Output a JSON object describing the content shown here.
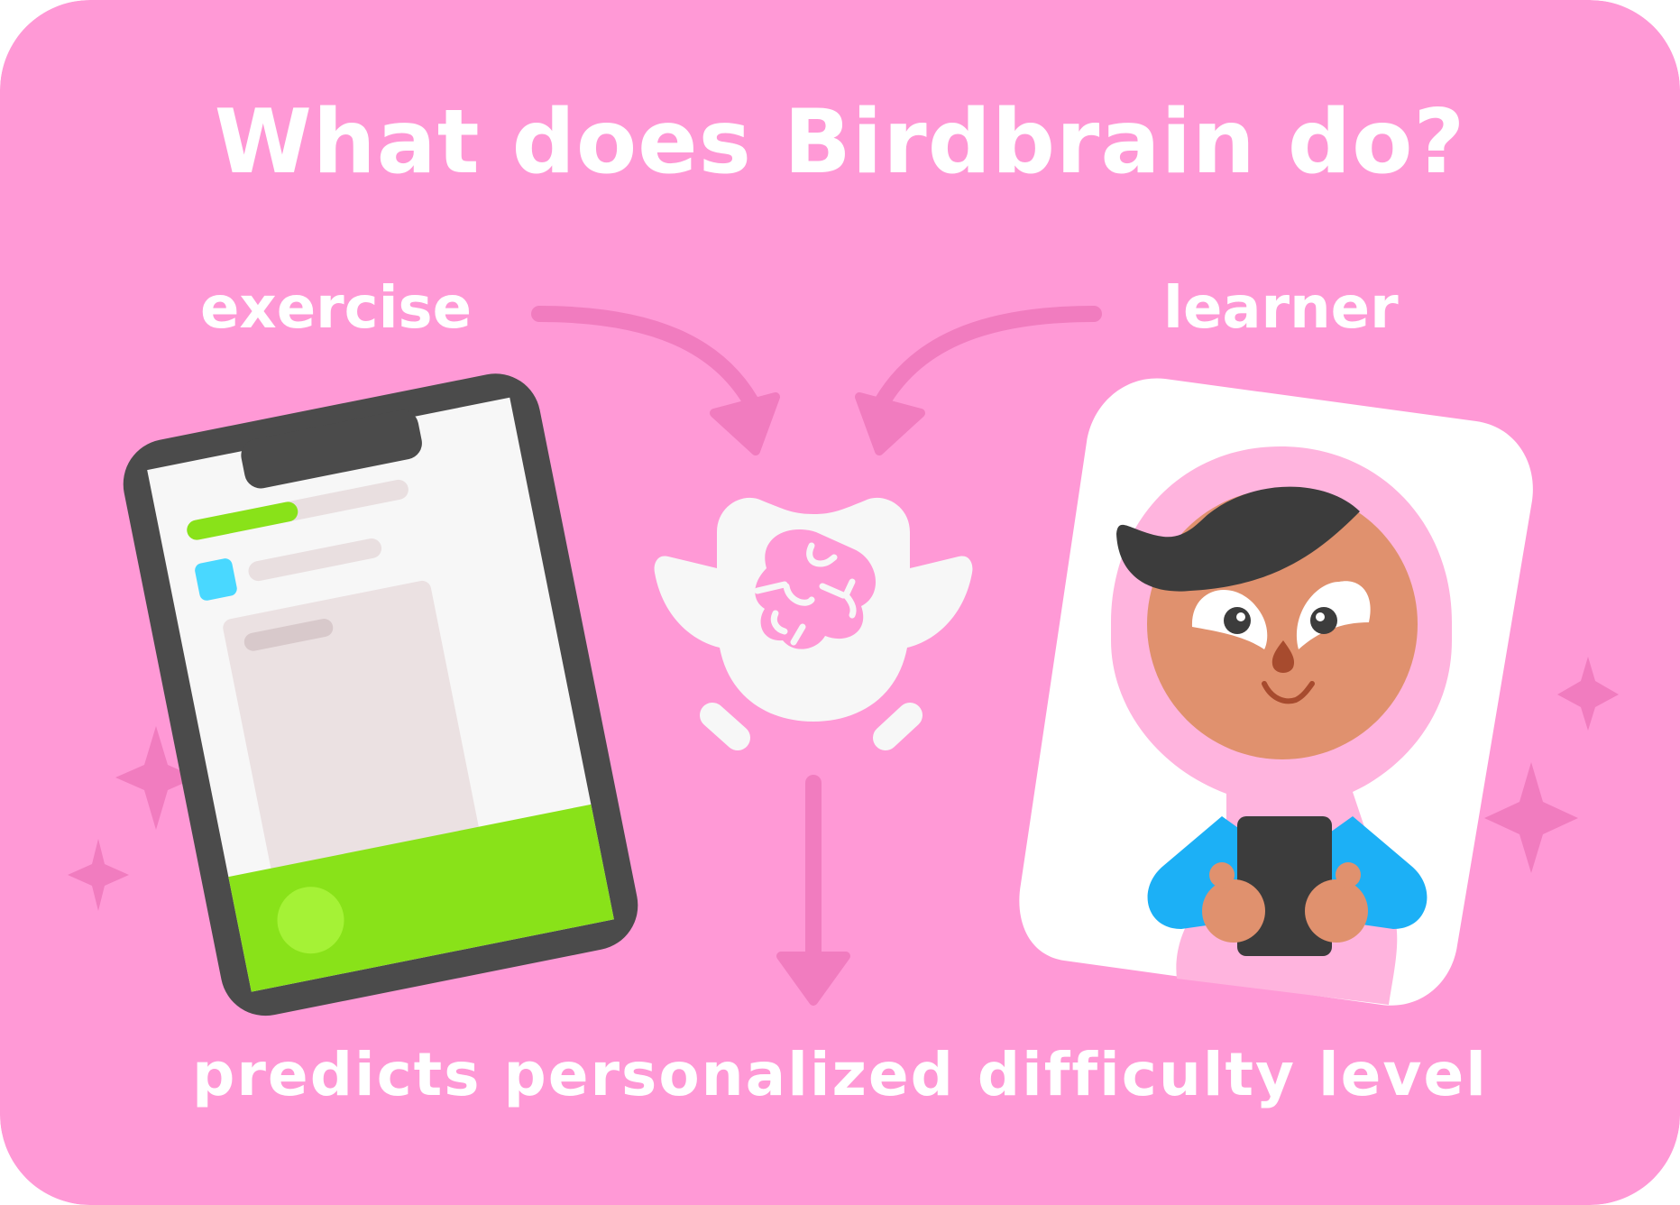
{
  "title": "What does Birdbrain do?",
  "inputs": {
    "exercise_label": "exercise",
    "learner_label": "learner"
  },
  "output": {
    "label": "predicts personalized difficulty level"
  },
  "colors": {
    "background": "#ff99d6",
    "arrow": "#f17cbf",
    "phone_frame": "#4b4b4b",
    "progress_green": "#89e219",
    "accent_blue": "#49d8ff",
    "learner_skin": "#e0916e",
    "learner_hijab": "#ffb4de",
    "learner_shirt": "#1cb0f6"
  },
  "icons": {
    "exercise": "phone-exercise-icon",
    "model": "birdbrain-owl-icon",
    "learner": "learner-character-icon",
    "sparkle": "sparkle-icon"
  }
}
